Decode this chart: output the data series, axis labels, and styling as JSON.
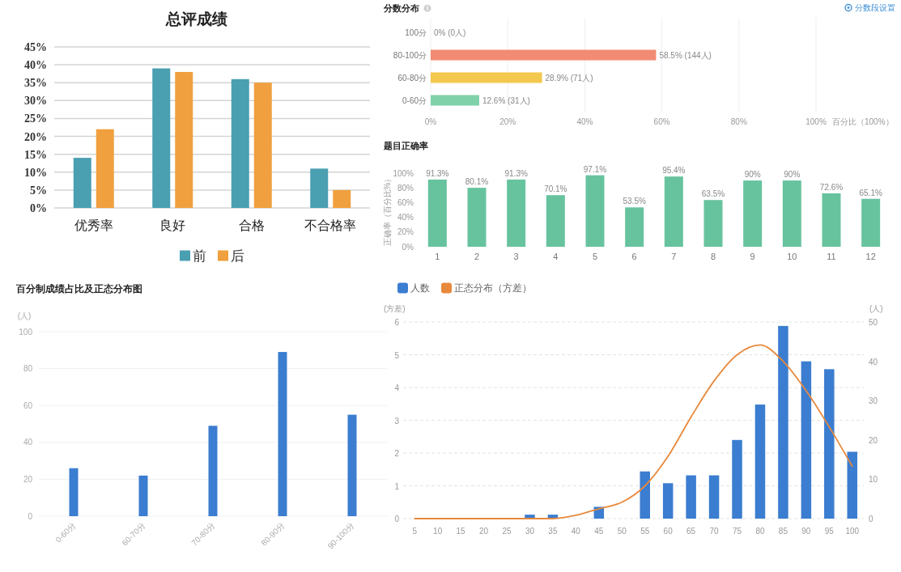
{
  "chart_data": [
    {
      "type": "bar",
      "title": "总评成绩",
      "categories": [
        "优秀率",
        "良好",
        "合格",
        "不合格率"
      ],
      "series": [
        {
          "name": "前",
          "color": "#4a9fb1",
          "values": [
            14,
            39,
            36,
            11
          ]
        },
        {
          "name": "后",
          "color": "#f0a03e",
          "values": [
            22,
            38,
            35,
            5
          ]
        }
      ],
      "ylim": [
        0,
        45
      ],
      "yticks": [
        {
          "value": 0,
          "label": "0%"
        },
        {
          "value": 5,
          "label": "5%"
        },
        {
          "value": 10,
          "label": "10%"
        },
        {
          "value": 15,
          "label": "15%"
        },
        {
          "value": 20,
          "label": "20%"
        },
        {
          "value": 25,
          "label": "25%"
        },
        {
          "value": 30,
          "label": "30%"
        },
        {
          "value": 35,
          "label": "35%"
        },
        {
          "value": 40,
          "label": "40%"
        },
        {
          "value": 45,
          "label": "45%"
        }
      ],
      "grid": "y",
      "legend": "bottom"
    },
    {
      "type": "bar",
      "orientation": "horizontal",
      "title": "分数分布",
      "categories": [
        "100分",
        "80-100分",
        "60-80分",
        "0-60分"
      ],
      "values": [
        0,
        58.5,
        28.9,
        12.6
      ],
      "colors": [
        "#f28b74",
        "#f28b74",
        "#f3c84e",
        "#7fd1a9"
      ],
      "value_labels": [
        "0% (0人)",
        "58.5% (144人)",
        "28.9% (71人)",
        "12.6% (31人)"
      ],
      "xlim": [
        0,
        100
      ],
      "xticks": [
        {
          "value": 0,
          "label": "0%"
        },
        {
          "value": 20,
          "label": "20%"
        },
        {
          "value": 40,
          "label": "40%"
        },
        {
          "value": 60,
          "label": "60%"
        },
        {
          "value": 80,
          "label": "80%"
        },
        {
          "value": 100,
          "label": "100%"
        }
      ],
      "xlabel": "百分比（100%）",
      "grid": "x",
      "annotations": [
        "分数段设置"
      ]
    },
    {
      "type": "bar",
      "title": "题目正确率",
      "ylabel": "正确率（百分比%）",
      "categories": [
        "1",
        "2",
        "3",
        "4",
        "5",
        "6",
        "7",
        "8",
        "9",
        "10",
        "11",
        "12"
      ],
      "values": [
        91.3,
        80.1,
        91.3,
        70.1,
        97.1,
        53.5,
        95.4,
        63.5,
        90,
        90,
        72.6,
        65.1
      ],
      "color": "#67c39e",
      "value_labels": [
        "91.3%",
        "80.1%",
        "91.3%",
        "70.1%",
        "97.1%",
        "53.5%",
        "95.4%",
        "63.5%",
        "90%",
        "90%",
        "72.6%",
        "65.1%"
      ],
      "ylim": [
        0,
        100
      ],
      "yticks": [
        {
          "value": 0,
          "label": "0%"
        },
        {
          "value": 20,
          "label": "20%"
        },
        {
          "value": 40,
          "label": "40%"
        },
        {
          "value": 60,
          "label": "60%"
        },
        {
          "value": 80,
          "label": "80%"
        },
        {
          "value": 100,
          "label": "100%"
        }
      ]
    },
    {
      "type": "bar",
      "title": "百分制成绩占比及正态分布图",
      "ylabel": "(人)",
      "categories": [
        "0-60分",
        "60-70分",
        "70-80分",
        "80-90分",
        "90-100分"
      ],
      "values": [
        26,
        22,
        49,
        89,
        55
      ],
      "color": "#3b7dd0",
      "ylim": [
        0,
        100
      ],
      "yticks": [
        0,
        20,
        40,
        60,
        80,
        100
      ],
      "grid": "y"
    },
    {
      "type": "bar",
      "categories": [
        "5",
        "10",
        "15",
        "20",
        "25",
        "30",
        "35",
        "40",
        "45",
        "50",
        "55",
        "60",
        "65",
        "70",
        "75",
        "80",
        "85",
        "90",
        "95",
        "100"
      ],
      "series": [
        {
          "name": "人数",
          "color": "#3b7dd0",
          "axis": "y2",
          "values": [
            0,
            0,
            0,
            0,
            0,
            1,
            1,
            0,
            3,
            0,
            12,
            9,
            11,
            11,
            20,
            29,
            49,
            40,
            38,
            17
          ]
        },
        {
          "name": "正态分布（方差）",
          "type": "line",
          "color": "#e8893c",
          "values": [
            0,
            0,
            0,
            0,
            0,
            0,
            0,
            0.1,
            0.3,
            0.5,
            1.0,
            1.9,
            3.1,
            4.2,
            5.0,
            5.3,
            4.8,
            3.9,
            2.8,
            1.6
          ]
        }
      ],
      "ylabel": "(方差)",
      "y2label": "(人)",
      "ylim": [
        0,
        6
      ],
      "yticks": [
        0,
        1,
        2,
        3,
        4,
        5,
        6
      ],
      "y2lim": [
        0,
        50
      ],
      "y2ticks": [
        0,
        10,
        20,
        30,
        40,
        50
      ],
      "grid": "y",
      "legend": "top left"
    }
  ]
}
